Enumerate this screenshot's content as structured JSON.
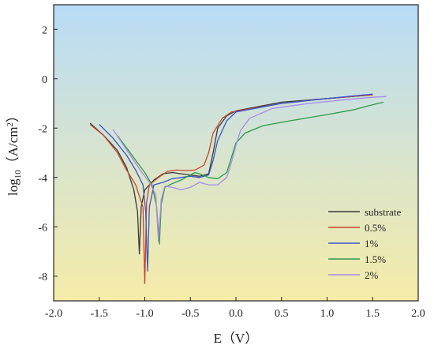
{
  "chart_data": {
    "type": "line",
    "title": "",
    "xlabel": "E（V）",
    "ylabel_main": "log",
    "ylabel_sub": "10",
    "ylabel_rest": "（A/cm",
    "ylabel_sup": "2",
    "ylabel_end": "）",
    "xlim": [
      -2.0,
      2.0
    ],
    "ylim": [
      -9.0,
      3.0
    ],
    "xticks": [
      -2.0,
      -1.5,
      -1.0,
      -0.5,
      0.0,
      0.5,
      1.0,
      1.5,
      2.0
    ],
    "xtick_labels": [
      "-2.0",
      "-1.5",
      "-1.0",
      "-0.5",
      "0.0",
      "0.5",
      "1.0",
      "1.5",
      "2.0"
    ],
    "yticks": [
      -8,
      -6,
      -4,
      -2,
      0,
      2
    ],
    "ytick_labels": [
      "-8",
      "-6",
      "-4",
      "-2",
      "0",
      "2"
    ],
    "legend_position": "lower-right",
    "background_gradient": [
      "#b8dcf7",
      "#f6eca8"
    ],
    "series": [
      {
        "name": "substrate",
        "color": "#3a3a3a",
        "points": [
          [
            -1.6,
            -1.8
          ],
          [
            -1.45,
            -2.3
          ],
          [
            -1.3,
            -2.9
          ],
          [
            -1.2,
            -3.6
          ],
          [
            -1.12,
            -4.5
          ],
          [
            -1.08,
            -5.4
          ],
          [
            -1.06,
            -7.1
          ],
          [
            -1.04,
            -5.2
          ],
          [
            -1.0,
            -4.5
          ],
          [
            -0.9,
            -4.1
          ],
          [
            -0.8,
            -3.85
          ],
          [
            -0.7,
            -3.8
          ],
          [
            -0.6,
            -3.85
          ],
          [
            -0.5,
            -3.9
          ],
          [
            -0.4,
            -3.95
          ],
          [
            -0.3,
            -3.85
          ],
          [
            -0.25,
            -3.0
          ],
          [
            -0.2,
            -2.0
          ],
          [
            -0.1,
            -1.5
          ],
          [
            0.0,
            -1.3
          ],
          [
            0.5,
            -0.95
          ],
          [
            1.0,
            -0.8
          ],
          [
            1.5,
            -0.65
          ]
        ]
      },
      {
        "name": "0.5%",
        "color": "#c8442f",
        "points": [
          [
            -1.6,
            -1.85
          ],
          [
            -1.45,
            -2.3
          ],
          [
            -1.3,
            -3.0
          ],
          [
            -1.2,
            -3.7
          ],
          [
            -1.1,
            -4.3
          ],
          [
            -1.02,
            -5.2
          ],
          [
            -1.0,
            -8.3
          ],
          [
            -0.98,
            -5.0
          ],
          [
            -0.95,
            -4.3
          ],
          [
            -0.85,
            -4.0
          ],
          [
            -0.75,
            -3.75
          ],
          [
            -0.65,
            -3.7
          ],
          [
            -0.55,
            -3.72
          ],
          [
            -0.45,
            -3.7
          ],
          [
            -0.35,
            -3.5
          ],
          [
            -0.3,
            -3.0
          ],
          [
            -0.25,
            -2.2
          ],
          [
            -0.15,
            -1.6
          ],
          [
            -0.05,
            -1.35
          ],
          [
            0.5,
            -1.0
          ],
          [
            1.0,
            -0.8
          ],
          [
            1.5,
            -0.65
          ]
        ]
      },
      {
        "name": "1%",
        "color": "#3a56c8",
        "points": [
          [
            -1.5,
            -1.85
          ],
          [
            -1.35,
            -2.4
          ],
          [
            -1.2,
            -3.1
          ],
          [
            -1.1,
            -3.7
          ],
          [
            -1.02,
            -4.3
          ],
          [
            -0.99,
            -5.4
          ],
          [
            -0.97,
            -7.8
          ],
          [
            -0.95,
            -5.2
          ],
          [
            -0.9,
            -4.3
          ],
          [
            -0.8,
            -4.2
          ],
          [
            -0.7,
            -4.05
          ],
          [
            -0.6,
            -4.0
          ],
          [
            -0.5,
            -3.95
          ],
          [
            -0.4,
            -4.0
          ],
          [
            -0.3,
            -3.9
          ],
          [
            -0.25,
            -3.3
          ],
          [
            -0.2,
            -2.5
          ],
          [
            -0.1,
            -1.7
          ],
          [
            0.0,
            -1.35
          ],
          [
            0.5,
            -1.0
          ],
          [
            1.0,
            -0.8
          ],
          [
            1.5,
            -0.62
          ]
        ]
      },
      {
        "name": "1.5%",
        "color": "#2e9a4a",
        "points": [
          [
            -1.3,
            -2.3
          ],
          [
            -1.2,
            -2.8
          ],
          [
            -1.1,
            -3.3
          ],
          [
            -1.0,
            -3.8
          ],
          [
            -0.92,
            -4.3
          ],
          [
            -0.87,
            -5.2
          ],
          [
            -0.84,
            -6.7
          ],
          [
            -0.82,
            -5.1
          ],
          [
            -0.78,
            -4.4
          ],
          [
            -0.7,
            -4.25
          ],
          [
            -0.6,
            -4.1
          ],
          [
            -0.5,
            -3.9
          ],
          [
            -0.45,
            -3.8
          ],
          [
            -0.4,
            -3.85
          ],
          [
            -0.3,
            -4.0
          ],
          [
            -0.2,
            -4.05
          ],
          [
            -0.1,
            -3.8
          ],
          [
            -0.05,
            -3.2
          ],
          [
            0.0,
            -2.6
          ],
          [
            0.1,
            -2.2
          ],
          [
            0.3,
            -1.9
          ],
          [
            0.6,
            -1.7
          ],
          [
            1.0,
            -1.45
          ],
          [
            1.3,
            -1.25
          ],
          [
            1.5,
            -1.05
          ],
          [
            1.62,
            -0.95
          ]
        ]
      },
      {
        "name": "2%",
        "color": "#a78be8",
        "points": [
          [
            -1.35,
            -2.05
          ],
          [
            -1.25,
            -2.6
          ],
          [
            -1.15,
            -3.15
          ],
          [
            -1.05,
            -3.7
          ],
          [
            -0.95,
            -4.2
          ],
          [
            -0.88,
            -4.7
          ],
          [
            -0.85,
            -6.6
          ],
          [
            -0.82,
            -4.9
          ],
          [
            -0.78,
            -4.35
          ],
          [
            -0.7,
            -4.4
          ],
          [
            -0.6,
            -4.5
          ],
          [
            -0.5,
            -4.4
          ],
          [
            -0.4,
            -4.2
          ],
          [
            -0.3,
            -4.3
          ],
          [
            -0.2,
            -4.3
          ],
          [
            -0.1,
            -4.0
          ],
          [
            -0.05,
            -3.4
          ],
          [
            0.0,
            -2.7
          ],
          [
            0.05,
            -2.1
          ],
          [
            0.15,
            -1.6
          ],
          [
            0.4,
            -1.2
          ],
          [
            0.8,
            -1.0
          ],
          [
            1.2,
            -0.85
          ],
          [
            1.5,
            -0.75
          ],
          [
            1.65,
            -0.72
          ]
        ]
      }
    ]
  }
}
